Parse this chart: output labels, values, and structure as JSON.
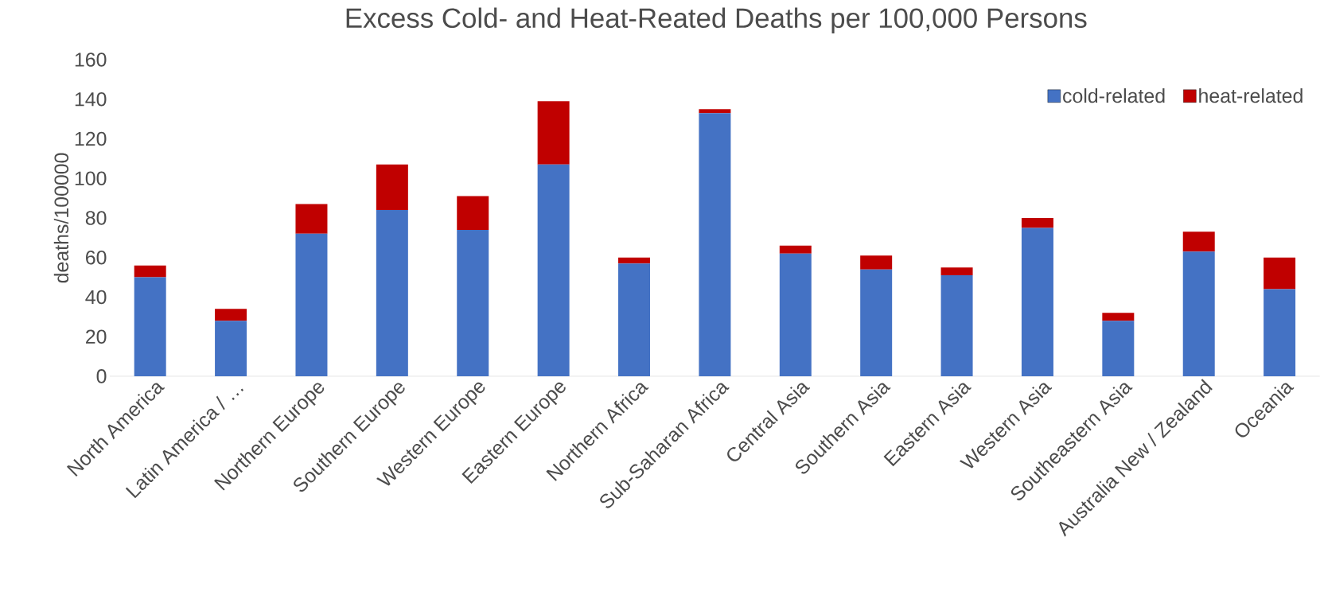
{
  "chart_data": {
    "type": "bar",
    "title": "Excess Cold- and Heat-Reated Deaths per 100,000 Persons",
    "ylabel": "deaths/100000",
    "categories": [
      "North America",
      "Latin America / …",
      "Northern Europe",
      "Southern Europe",
      "Western Europe",
      "Eastern Europe",
      "Northern Africa",
      "Sub-Saharan Africa",
      "Central Asia",
      "Southern Asia",
      "Eastern Asia",
      "Western Asia",
      "Southeastern Asia",
      "Australia New / Zealand",
      "Oceania"
    ],
    "series": [
      {
        "name": "cold-related",
        "color": "#4472c4",
        "values": [
          50,
          28,
          72,
          84,
          74,
          107,
          57,
          133,
          62,
          54,
          51,
          75,
          28,
          63,
          44
        ]
      },
      {
        "name": "heat-related",
        "color": "#c00000",
        "values": [
          6,
          6,
          15,
          23,
          17,
          32,
          3,
          2,
          4,
          7,
          4,
          5,
          4,
          10,
          16
        ]
      }
    ],
    "stacked": true,
    "ylim": [
      0,
      160
    ],
    "yticks": [
      0,
      20,
      40,
      60,
      80,
      100,
      120,
      140,
      160
    ],
    "legend": "top right"
  }
}
